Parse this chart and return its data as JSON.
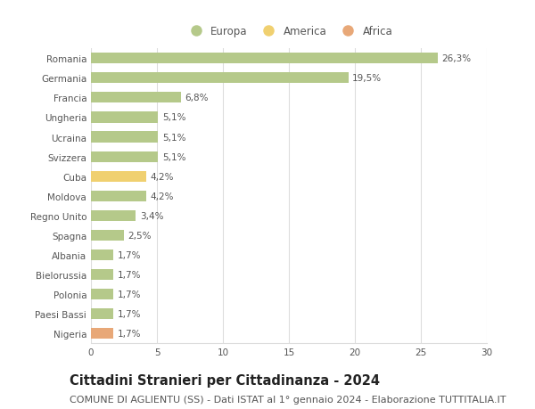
{
  "categories": [
    "Romania",
    "Germania",
    "Francia",
    "Ungheria",
    "Ucraina",
    "Svizzera",
    "Cuba",
    "Moldova",
    "Regno Unito",
    "Spagna",
    "Albania",
    "Bielorussia",
    "Polonia",
    "Paesi Bassi",
    "Nigeria"
  ],
  "values": [
    26.3,
    19.5,
    6.8,
    5.1,
    5.1,
    5.1,
    4.2,
    4.2,
    3.4,
    2.5,
    1.7,
    1.7,
    1.7,
    1.7,
    1.7
  ],
  "labels": [
    "26,3%",
    "19,5%",
    "6,8%",
    "5,1%",
    "5,1%",
    "5,1%",
    "4,2%",
    "4,2%",
    "3,4%",
    "2,5%",
    "1,7%",
    "1,7%",
    "1,7%",
    "1,7%",
    "1,7%"
  ],
  "bar_colors": [
    "#b5c98a",
    "#b5c98a",
    "#b5c98a",
    "#b5c98a",
    "#b5c98a",
    "#b5c98a",
    "#f0d070",
    "#b5c98a",
    "#b5c98a",
    "#b5c98a",
    "#b5c98a",
    "#b5c98a",
    "#b5c98a",
    "#b5c98a",
    "#e8a878"
  ],
  "legend_labels": [
    "Europa",
    "America",
    "Africa"
  ],
  "legend_colors": [
    "#b5c98a",
    "#f0d070",
    "#e8a878"
  ],
  "title": "Cittadini Stranieri per Cittadinanza - 2024",
  "subtitle": "COMUNE DI AGLIENTU (SS) - Dati ISTAT al 1° gennaio 2024 - Elaborazione TUTTITALIA.IT",
  "xlim": [
    0,
    30
  ],
  "xticks": [
    0,
    5,
    10,
    15,
    20,
    25,
    30
  ],
  "background_color": "#ffffff",
  "grid_color": "#dddddd",
  "bar_height": 0.55,
  "title_fontsize": 10.5,
  "subtitle_fontsize": 8,
  "label_fontsize": 7.5,
  "tick_fontsize": 7.5,
  "legend_fontsize": 8.5
}
